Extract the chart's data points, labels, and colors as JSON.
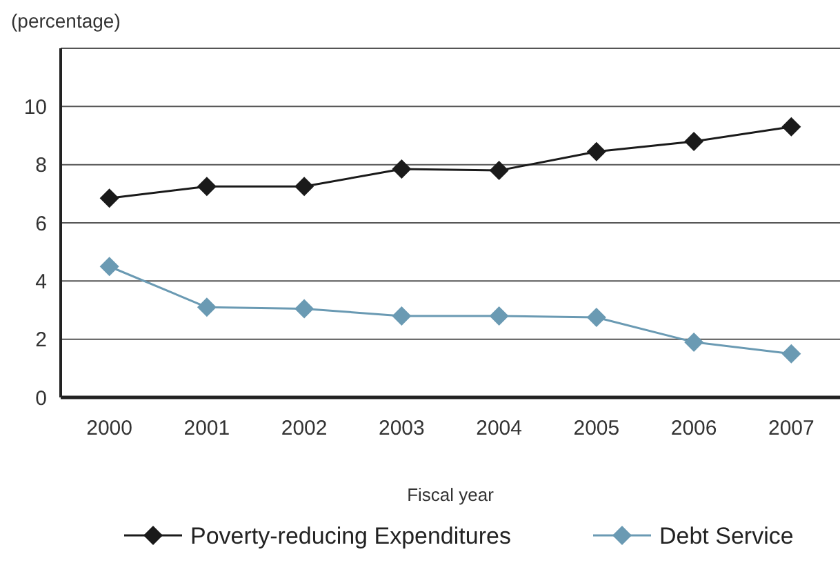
{
  "chart_data": {
    "type": "line",
    "subtitle": "(percentage)",
    "xlabel": "Fiscal year",
    "categories": [
      "2000",
      "2001",
      "2002",
      "2003",
      "2004",
      "2005",
      "2006",
      "2007"
    ],
    "series": [
      {
        "name": "Poverty-reducing Expenditures",
        "color": "#1a1a1a",
        "values": [
          6.85,
          7.25,
          7.25,
          7.85,
          7.8,
          8.45,
          8.8,
          9.3
        ]
      },
      {
        "name": "Debt Service",
        "color": "#6a9ab3",
        "values": [
          4.5,
          3.1,
          3.05,
          2.8,
          2.8,
          2.75,
          1.9,
          1.5
        ]
      }
    ],
    "ylim": [
      0,
      12
    ],
    "yticks": [
      0,
      2,
      4,
      6,
      8,
      10,
      {
        "value": 12,
        "label": null
      }
    ],
    "grid": "y",
    "legend": "bottom",
    "marker": "diamond",
    "line_style": "solid"
  }
}
